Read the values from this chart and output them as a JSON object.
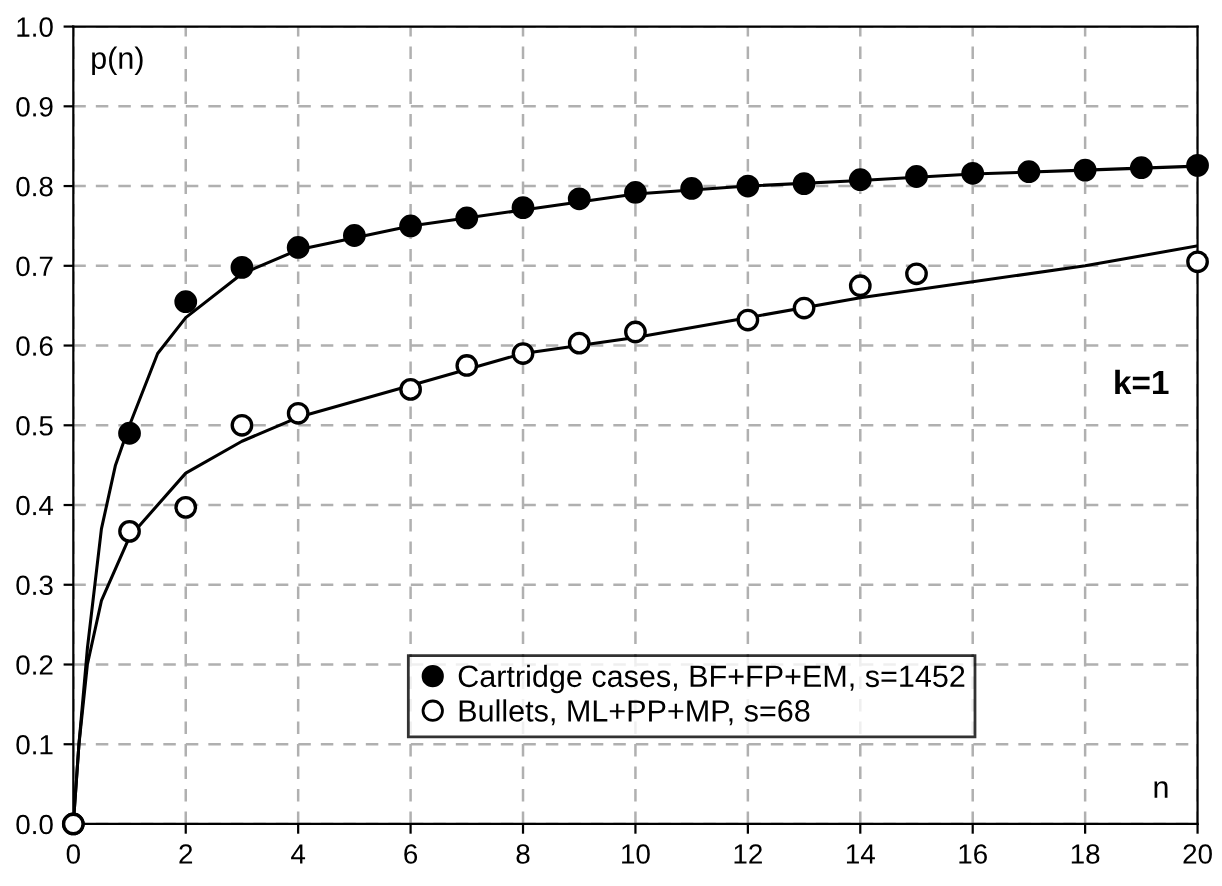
{
  "chart_data": {
    "type": "scatter",
    "xlabel": "n",
    "ylabel": "p(n)",
    "annotations": [
      "k=1"
    ],
    "xlim": [
      0,
      20
    ],
    "ylim": [
      0,
      1.0
    ],
    "xticks": [
      0,
      2,
      4,
      6,
      8,
      10,
      12,
      14,
      16,
      18,
      20
    ],
    "yticks": [
      {
        "value": 0,
        "label": "0.0"
      },
      0.1,
      0.2,
      0.3,
      0.4,
      0.5,
      0.6,
      0.7,
      0.8,
      0.9,
      {
        "value": 1,
        "label": "1.0"
      }
    ],
    "grid": true,
    "legend": "bottom",
    "marker": "circle",
    "series": [
      {
        "type": "line",
        "color": "#000000",
        "marker": "none",
        "x": [
          0,
          0.1,
          0.25,
          0.5,
          0.75,
          1,
          1.5,
          2,
          3,
          4,
          6,
          8,
          10,
          12,
          14,
          16,
          18,
          20
        ],
        "values": [
          0,
          0.1,
          0.22,
          0.37,
          0.45,
          0.5,
          0.59,
          0.635,
          0.69,
          0.72,
          0.75,
          0.77,
          0.79,
          0.8,
          0.807,
          0.815,
          0.82,
          0.825
        ]
      },
      {
        "type": "line",
        "color": "#000000",
        "marker": "none",
        "x": [
          0,
          0.1,
          0.25,
          0.5,
          1,
          2,
          3,
          4,
          6,
          8,
          10,
          12,
          14,
          16,
          18,
          20
        ],
        "values": [
          0,
          0.1,
          0.2,
          0.28,
          0.36,
          0.44,
          0.48,
          0.51,
          0.55,
          0.59,
          0.61,
          0.635,
          0.66,
          0.68,
          0.7,
          0.725
        ]
      },
      {
        "name": "Cartridge cases, BF+FP+EM, s=1452",
        "color": "#000000",
        "x": [
          0,
          1,
          2,
          3,
          4,
          5,
          6,
          7,
          8,
          9,
          10,
          11,
          12,
          13,
          14,
          15,
          16,
          17,
          18,
          19,
          20
        ],
        "values": [
          0,
          0.49,
          0.655,
          0.698,
          0.723,
          0.738,
          0.75,
          0.76,
          0.773,
          0.784,
          0.792,
          0.797,
          0.8,
          0.803,
          0.808,
          0.812,
          0.816,
          0.818,
          0.82,
          0.823,
          0.826
        ]
      },
      {
        "name": "Bullets, ML+PP+MP, s=68",
        "color": "#ffffff",
        "x": [
          0,
          1,
          2,
          3,
          4,
          6,
          7,
          8,
          9,
          10,
          12,
          13,
          14,
          15,
          20
        ],
        "values": [
          0,
          0.367,
          0.397,
          0.5,
          0.515,
          0.545,
          0.575,
          0.59,
          0.603,
          0.617,
          0.632,
          0.647,
          0.675,
          0.69,
          0.705
        ]
      }
    ]
  }
}
